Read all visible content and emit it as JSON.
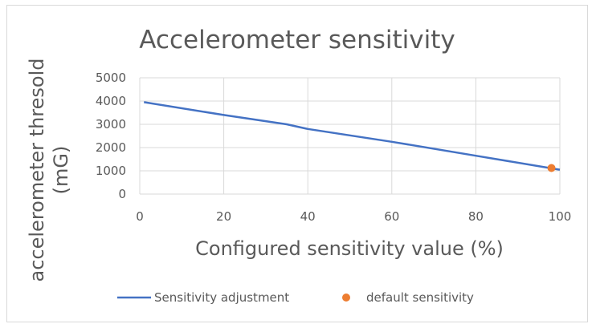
{
  "chart_data": {
    "type": "line",
    "title": "Accelerometer sensitivity",
    "xlabel": "Configured sensitivity value (%)",
    "ylabel_line1": "accelerometer thresold",
    "ylabel_line2": "(mG)",
    "xlim": [
      0,
      100
    ],
    "ylim": [
      0,
      5000
    ],
    "x_ticks": [
      0,
      20,
      40,
      60,
      80,
      100
    ],
    "y_ticks": [
      0,
      1000,
      2000,
      3000,
      4000,
      5000
    ],
    "grid": true,
    "legend_position": "bottom",
    "series": [
      {
        "name": "Sensitivity adjustment",
        "type": "line",
        "color": "#4472c4",
        "points": [
          [
            1,
            3950
          ],
          [
            20,
            3400
          ],
          [
            35,
            3000
          ],
          [
            40,
            2800
          ],
          [
            60,
            2250
          ],
          [
            80,
            1650
          ],
          [
            100,
            1050
          ]
        ]
      },
      {
        "name": "default sensitivity",
        "type": "scatter",
        "color": "#ed7d31",
        "points": [
          [
            98,
            1120
          ]
        ]
      }
    ]
  }
}
